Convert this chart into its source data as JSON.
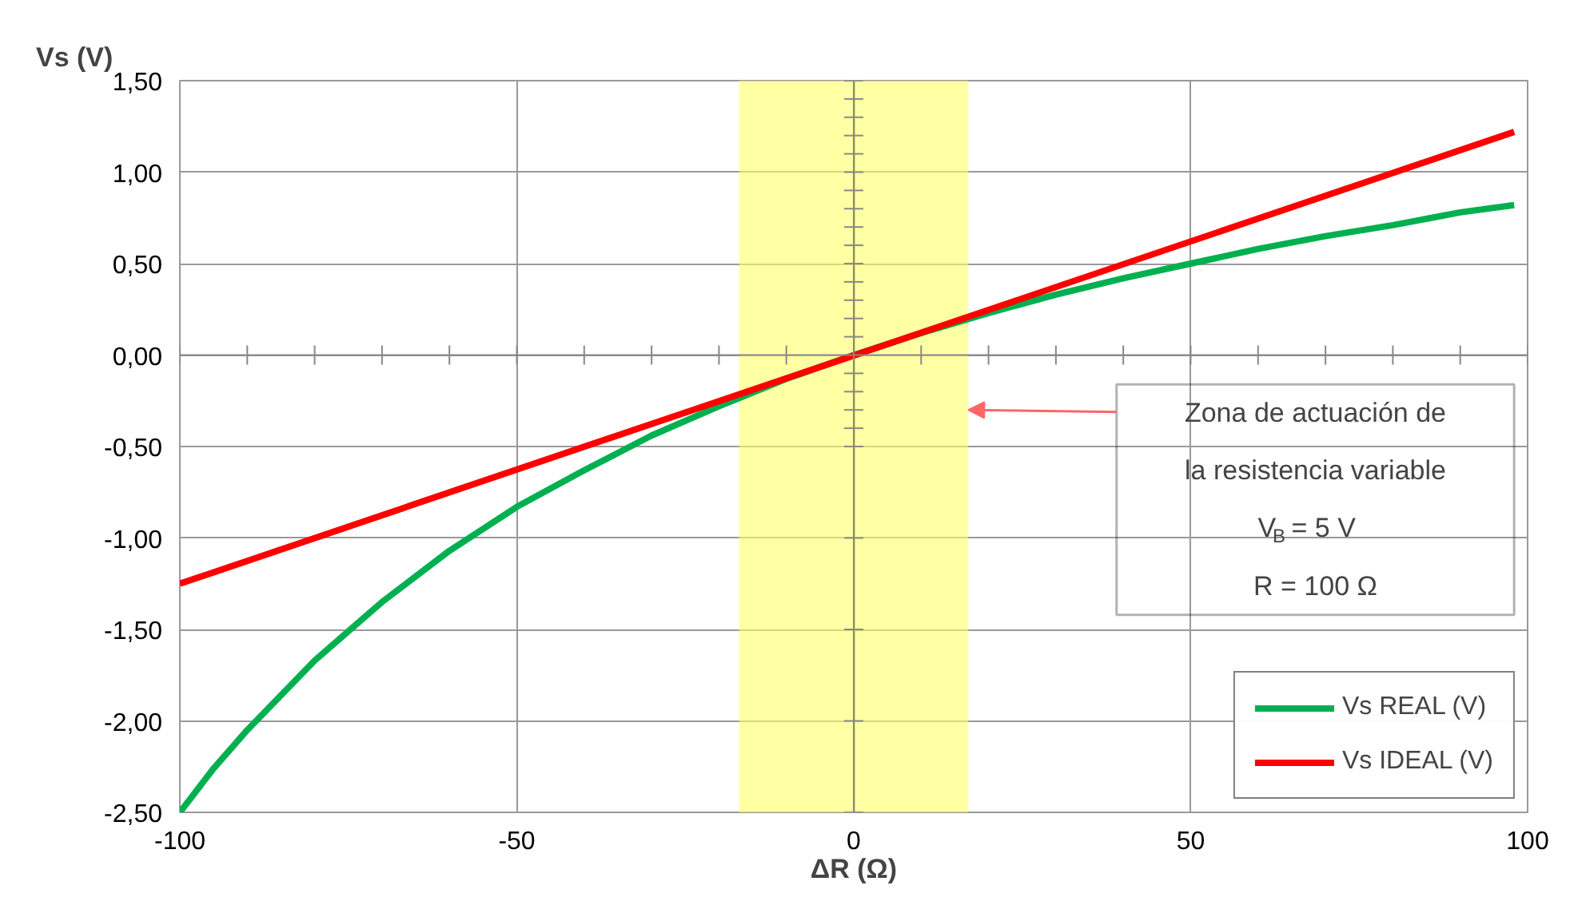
{
  "chart_data": {
    "type": "line",
    "ylabel": "Vs (V)",
    "xlabel": "ΔR (Ω)",
    "xlim": [
      -100,
      100
    ],
    "ylim": [
      -2.5,
      1.5
    ],
    "xticks": [
      -100,
      {
        "value": -90,
        "label": null
      },
      {
        "value": -80,
        "label": null
      },
      {
        "value": -70,
        "label": null
      },
      {
        "value": -60,
        "label": null
      },
      -50,
      {
        "value": -40,
        "label": null
      },
      {
        "value": -30,
        "label": null
      },
      {
        "value": -20,
        "label": null
      },
      {
        "value": -10,
        "label": null
      },
      0,
      {
        "value": 10,
        "label": null
      },
      {
        "value": 20,
        "label": null
      },
      {
        "value": 30,
        "label": null
      },
      {
        "value": 40,
        "label": null
      },
      50,
      {
        "value": 60,
        "label": null
      },
      {
        "value": 70,
        "label": null
      },
      {
        "value": 80,
        "label": null
      },
      {
        "value": 90,
        "label": null
      },
      100
    ],
    "yticks": [
      {
        "value": -2.5,
        "label": "-2,50"
      },
      {
        "value": -2.0,
        "label": "-2,00"
      },
      {
        "value": -1.5,
        "label": "-1,50"
      },
      {
        "value": -1.0,
        "label": "-1,00"
      },
      {
        "value": -0.5,
        "label": "-0,50"
      },
      {
        "value": -0.4,
        "label": null
      },
      {
        "value": -0.3,
        "label": null
      },
      {
        "value": -0.2,
        "label": null
      },
      {
        "value": -0.1,
        "label": null
      },
      {
        "value": 0,
        "label": "0,00"
      },
      {
        "value": 0.1,
        "label": null
      },
      {
        "value": 0.2,
        "label": null
      },
      {
        "value": 0.3,
        "label": null
      },
      {
        "value": 0.4,
        "label": null
      },
      {
        "value": 0.5,
        "label": "0,50"
      },
      {
        "value": 0.6,
        "label": null
      },
      {
        "value": 0.7,
        "label": null
      },
      {
        "value": 0.8,
        "label": null
      },
      {
        "value": 0.9,
        "label": null
      },
      {
        "value": 1.0,
        "label": "1,00"
      },
      {
        "value": 1.1,
        "label": null
      },
      {
        "value": 1.2,
        "label": null
      },
      {
        "value": 1.3,
        "label": null
      },
      {
        "value": 1.4,
        "label": null
      },
      {
        "value": 1.5,
        "label": "1,50"
      }
    ],
    "grid": true,
    "legend": "bottom right",
    "series": [
      {
        "name": "Vs REAL (V)",
        "color": "#00b050",
        "x": [
          -100,
          -95,
          -90,
          -80,
          -70,
          -60,
          -50,
          -40,
          -30,
          -20,
          -10,
          0,
          10,
          20,
          30,
          40,
          50,
          60,
          70,
          80,
          90,
          98
        ],
        "values": [
          -2.5,
          -2.26,
          -2.05,
          -1.67,
          -1.35,
          -1.07,
          -0.83,
          -0.63,
          -0.44,
          -0.28,
          -0.13,
          0,
          0.12,
          0.23,
          0.33,
          0.42,
          0.5,
          0.58,
          0.65,
          0.71,
          0.78,
          0.82
        ]
      },
      {
        "name": "Vs IDEAL (V)",
        "color": "#ff0000",
        "x": [
          -100,
          98
        ],
        "values": [
          -1.25,
          1.22
        ]
      }
    ],
    "bands": [
      {
        "axis": "x",
        "from": -17,
        "to": 17,
        "color": "#ffff66"
      }
    ],
    "annotations": [
      "Zona de actuación de\nla resistencia variable\nV$_{B}$ = 5 V\nR = 100 Ω"
    ]
  }
}
